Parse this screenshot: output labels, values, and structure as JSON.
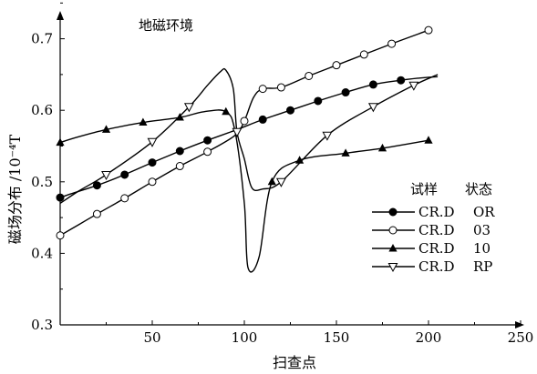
{
  "chart_data": {
    "type": "line",
    "title": "",
    "annotation": "地磁环境",
    "xlabel": "扫查点",
    "ylabel": "磁场分布 /10⁻⁴T",
    "xlim": [
      0,
      250
    ],
    "ylim": [
      0.3,
      0.75
    ],
    "xticks": [
      "50",
      "100",
      "150",
      "200",
      "250"
    ],
    "yticks": [
      "0.3",
      "0.4",
      "0.5",
      "0.6",
      "0.7"
    ],
    "legend_header": [
      "试样",
      "状态"
    ],
    "legend_position": "right",
    "series": [
      {
        "name": "CR.D",
        "state": "OR",
        "marker": "filled-circle",
        "x": [
          0,
          8,
          20,
          35,
          50,
          65,
          80,
          95,
          110,
          125,
          140,
          155,
          170,
          185,
          195,
          205
        ],
        "y": [
          0.478,
          0.485,
          0.495,
          0.51,
          0.527,
          0.543,
          0.558,
          0.572,
          0.587,
          0.6,
          0.613,
          0.625,
          0.636,
          0.642,
          0.645,
          0.647
        ]
      },
      {
        "name": "CR.D",
        "state": "03",
        "marker": "open-circle",
        "x": [
          0,
          10,
          20,
          35,
          50,
          65,
          80,
          95,
          100,
          105,
          110,
          120,
          135,
          150,
          165,
          180,
          200
        ],
        "y": [
          0.425,
          0.44,
          0.455,
          0.477,
          0.5,
          0.522,
          0.542,
          0.565,
          0.585,
          0.618,
          0.63,
          0.632,
          0.648,
          0.663,
          0.678,
          0.693,
          0.712
        ]
      },
      {
        "name": "CR.D",
        "state": "10",
        "marker": "filled-triangle",
        "x": [
          0,
          10,
          25,
          45,
          65,
          78,
          90,
          95,
          100,
          102,
          108,
          115,
          130,
          155,
          175,
          200
        ],
        "y": [
          0.555,
          0.563,
          0.573,
          0.583,
          0.59,
          0.598,
          0.598,
          0.57,
          0.47,
          0.38,
          0.395,
          0.5,
          0.53,
          0.54,
          0.547,
          0.558
        ]
      },
      {
        "name": "CR.D",
        "state": "RP",
        "marker": "open-triangle-down",
        "x": [
          0,
          10,
          25,
          50,
          70,
          80,
          87,
          90,
          94,
          96,
          100,
          104,
          110,
          120,
          145,
          170,
          192,
          205
        ],
        "y": [
          0.47,
          0.487,
          0.51,
          0.556,
          0.605,
          0.635,
          0.654,
          0.656,
          0.63,
          0.57,
          0.532,
          0.492,
          0.49,
          0.5,
          0.565,
          0.605,
          0.635,
          0.65
        ]
      }
    ]
  }
}
